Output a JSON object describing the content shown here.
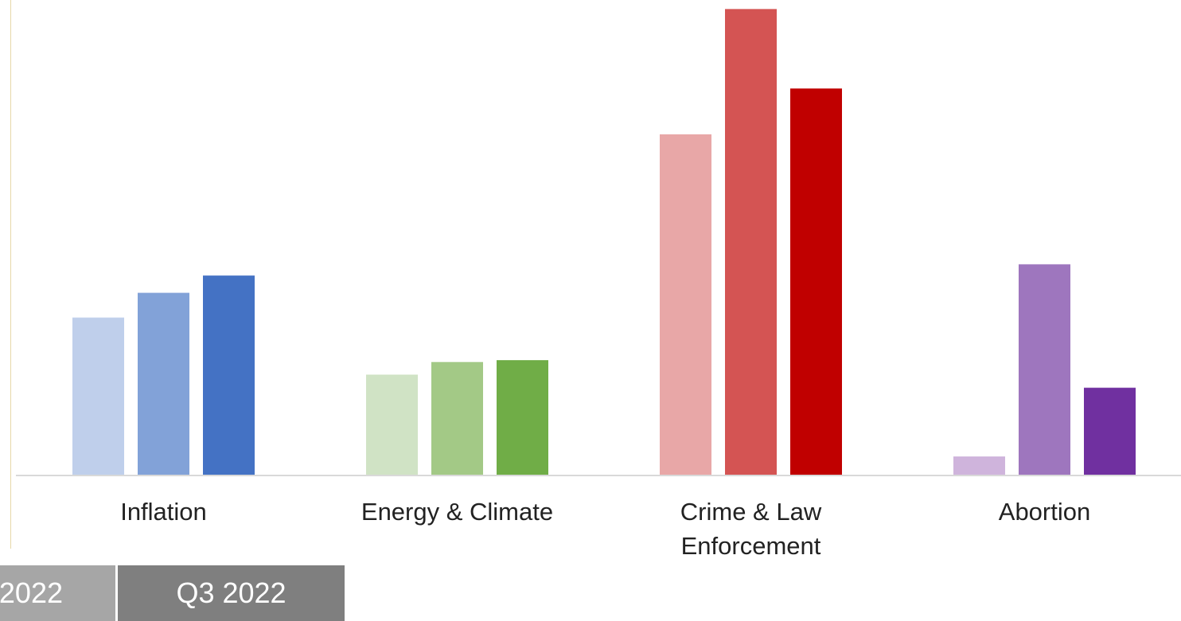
{
  "chart_data": {
    "type": "bar",
    "title": "",
    "xlabel": "",
    "ylabel": "",
    "ylim": [
      0,
      100
    ],
    "grid": false,
    "categories": [
      "Inflation",
      "Energy & Climate",
      "Crime & Law Enforcement",
      "Abortion"
    ],
    "category_lines": [
      [
        "Inflation"
      ],
      [
        "Energy & Climate"
      ],
      [
        "Crime & Law",
        "Enforcement"
      ],
      [
        "Abortion"
      ]
    ],
    "series": [
      {
        "values": [
          33.6,
          21.4,
          72.8,
          3.9
        ]
      },
      {
        "values": [
          38.9,
          24.1,
          99.6,
          45.0
        ]
      },
      {
        "values": [
          42.6,
          24.5,
          82.6,
          18.6
        ]
      }
    ],
    "colors": [
      [
        "#bfcfeb",
        "#82a2d8",
        "#4472c4"
      ],
      [
        "#d0e3c5",
        "#a3c986",
        "#70ad47"
      ],
      [
        "#e8a7a7",
        "#d45453",
        "#c00000"
      ],
      [
        "#cfb4dc",
        "#9e76be",
        "#7030a0"
      ]
    ],
    "legend": {
      "placement": "bottom-left",
      "items": [
        {
          "label": "2022",
          "color": "#a6a6a6"
        },
        {
          "label": "Q3 2022",
          "color": "#7f7f7f"
        }
      ]
    }
  }
}
